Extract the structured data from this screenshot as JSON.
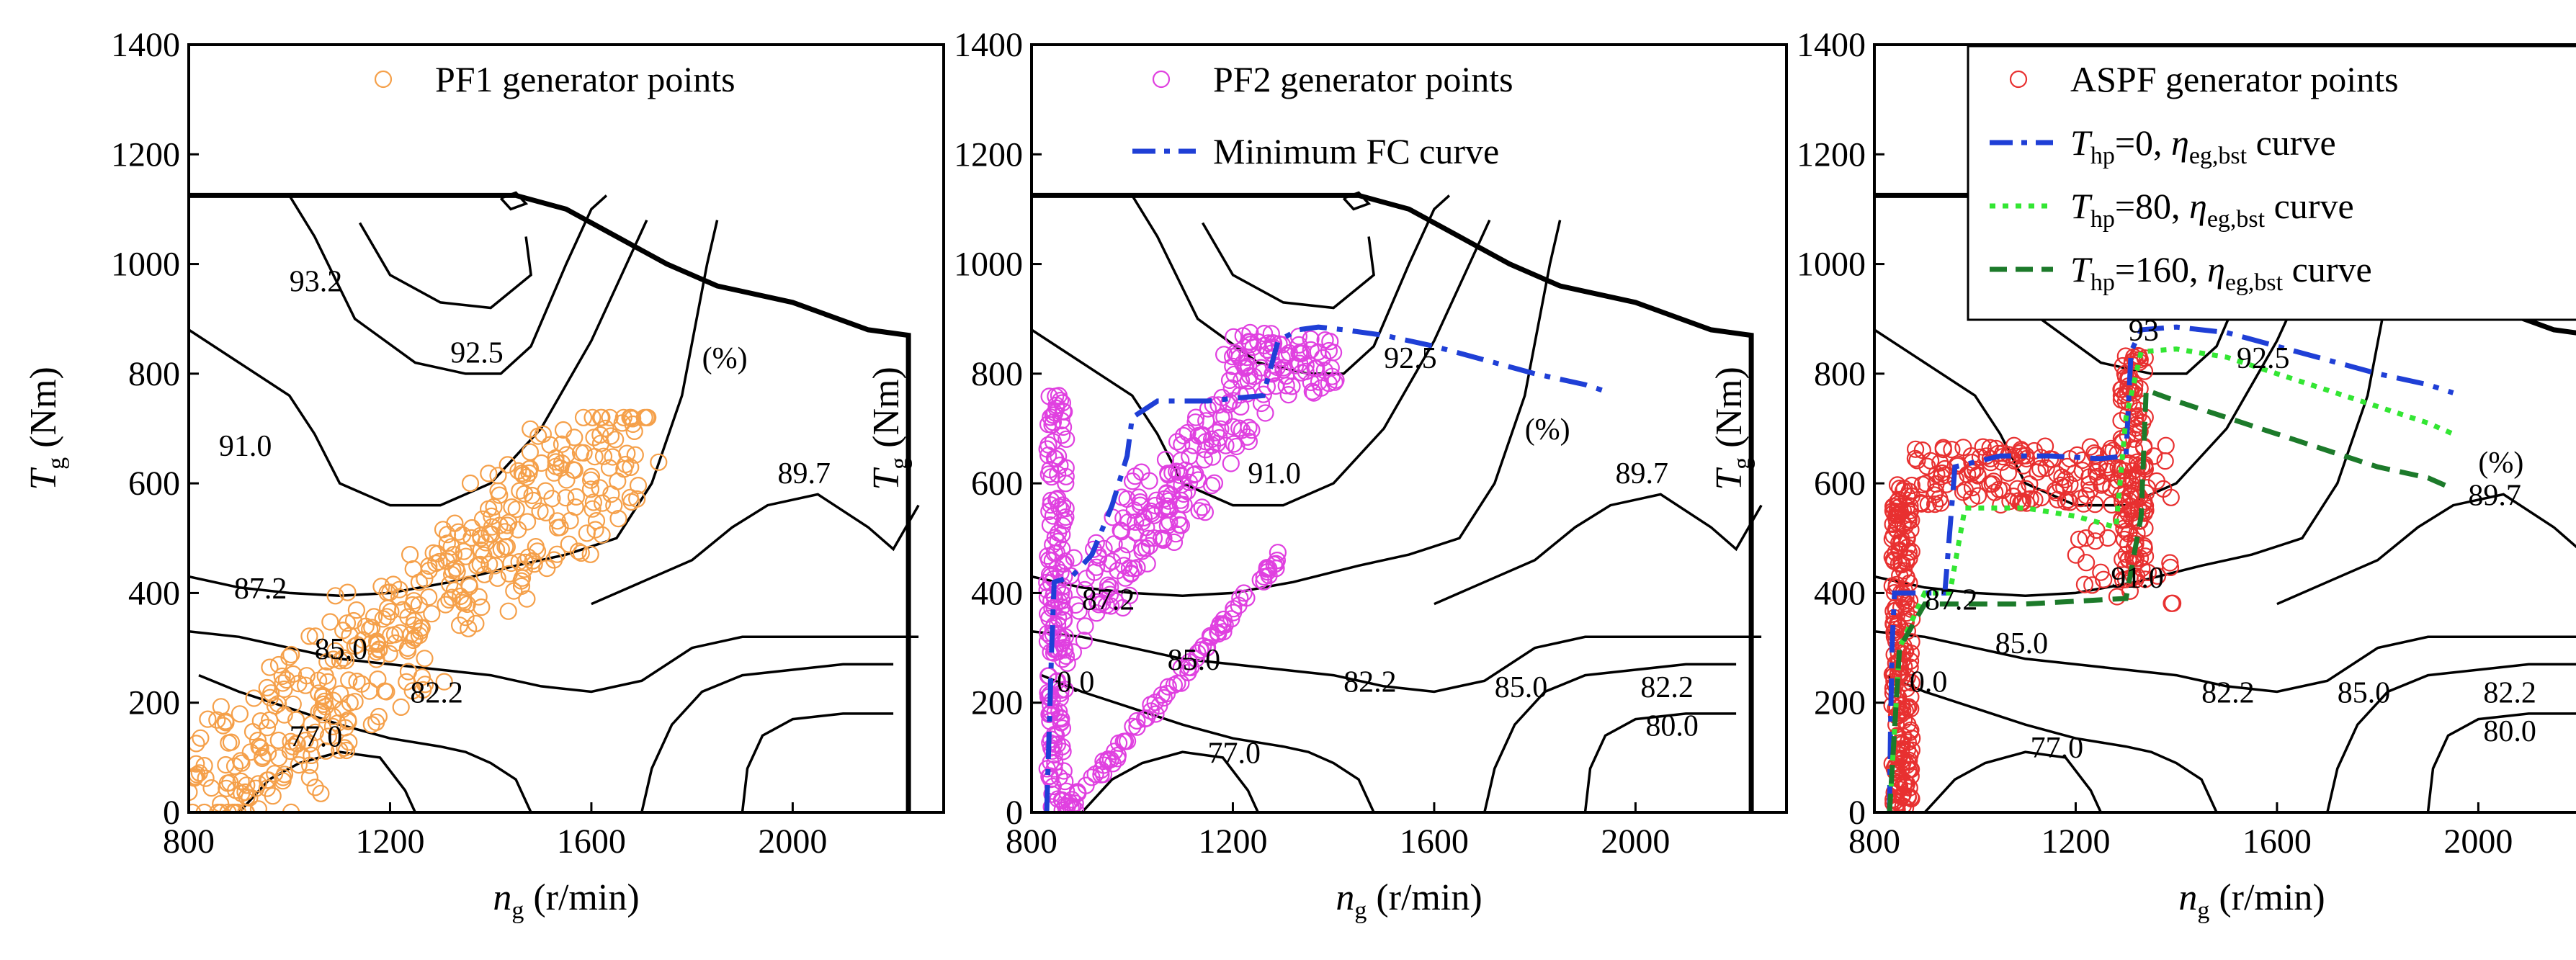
{
  "chart_data": [
    {
      "type": "scatter",
      "panel": "left",
      "xlabel": "n",
      "xlabel_sub": "g",
      "xlabel_unit": " (r/min)",
      "ylabel": "T",
      "ylabel_sub": "g",
      "ylabel_unit": " (Nm)",
      "xlim": [
        800,
        2300
      ],
      "ylim": [
        0,
        1400
      ],
      "xticks": [
        "800",
        "1200",
        "1600",
        "2000"
      ],
      "yticks": [
        "0",
        "200",
        "400",
        "600",
        "800",
        "1000",
        "1200",
        "1400"
      ],
      "unit_label": "(%)",
      "contour_labels": [
        "93.2",
        "92.5",
        "91.0",
        "89.7",
        "87.2",
        "85.0",
        "82.2",
        "77.0"
      ],
      "legend": [
        {
          "label": "PF1 generator points",
          "marker": "circle",
          "color": "#f5a04a"
        }
      ],
      "series": [
        {
          "name": "PF1 generator points",
          "color": "#f5a04a",
          "marker": "circle"
        }
      ]
    },
    {
      "type": "scatter",
      "panel": "middle",
      "xlabel": "n",
      "xlabel_sub": "g",
      "xlabel_unit": " (r/min)",
      "ylabel": "T",
      "ylabel_sub": "g",
      "ylabel_unit": " (Nm)",
      "xlim": [
        800,
        2300
      ],
      "ylim": [
        0,
        1400
      ],
      "xticks": [
        "800",
        "1200",
        "1600",
        "2000"
      ],
      "yticks": [
        "0",
        "200",
        "400",
        "600",
        "800",
        "1000",
        "1200",
        "1400"
      ],
      "unit_label": "(%)",
      "contour_labels": [
        "92.5",
        "91.0",
        "89.7",
        "87.2",
        "85.0",
        "0.0",
        "82.2",
        "85.0",
        "82.2",
        "80.0",
        "77.0"
      ],
      "legend": [
        {
          "label": "PF2 generator points",
          "marker": "circle",
          "color": "#e040e0"
        },
        {
          "label": "Minimum FC curve",
          "style": "dash-dot",
          "color": "#1f3fd6"
        }
      ],
      "series": [
        {
          "name": "PF2 generator points",
          "color": "#e040e0",
          "marker": "circle"
        },
        {
          "name": "Minimum FC curve",
          "color": "#1f3fd6",
          "line": "dash-dot",
          "x": [
            830,
            835,
            840,
            845,
            880,
            920,
            960,
            990,
            1000,
            1050,
            1100,
            1150,
            1200,
            1260,
            1290,
            1330,
            1370,
            1420,
            1500,
            1600,
            1700,
            1800,
            1900,
            1950
          ],
          "y": [
            0,
            150,
            300,
            420,
            430,
            470,
            560,
            650,
            720,
            750,
            750,
            750,
            755,
            760,
            860,
            880,
            885,
            880,
            870,
            850,
            825,
            800,
            780,
            765
          ]
        }
      ]
    },
    {
      "type": "scatter",
      "panel": "right",
      "xlabel": "n",
      "xlabel_sub": "g",
      "xlabel_unit": " (r/min)",
      "ylabel": "T",
      "ylabel_sub": "g",
      "ylabel_unit": " (Nm)",
      "xlim": [
        800,
        2300
      ],
      "ylim": [
        0,
        1400
      ],
      "xticks": [
        "800",
        "1200",
        "1600",
        "2000"
      ],
      "yticks": [
        "0",
        "200",
        "400",
        "600",
        "800",
        "1000",
        "1200",
        "1400"
      ],
      "unit_label": "(%)",
      "contour_labels": [
        "93",
        "92.5",
        "91.0",
        "89.7",
        "87.2",
        "85.0",
        "0.0",
        "82.2",
        "85.0",
        "82.2",
        "80.0",
        "77.0"
      ],
      "legend": [
        {
          "label": "ASPF generator points",
          "marker": "circle",
          "color": "#e83030"
        },
        {
          "label_T": "T",
          "label_sub": "hp",
          "label_mid": "=0, ",
          "label_eta": "η",
          "label_eta_sub": "eg,bst",
          "label_end": " curve",
          "style": "dash-dot",
          "color": "#1f3fd6"
        },
        {
          "label_T": "T",
          "label_sub": "hp",
          "label_mid": "=80, ",
          "label_eta": "η",
          "label_eta_sub": "eg,bst",
          "label_end": " curve",
          "style": "dotted",
          "color": "#33e633"
        },
        {
          "label_T": "T",
          "label_sub": "hp",
          "label_mid": "=160, ",
          "label_eta": "η",
          "label_eta_sub": "eg,bst",
          "label_end": " curve",
          "style": "dashed",
          "color": "#1c7a2a"
        }
      ],
      "series": [
        {
          "name": "ASPF generator points",
          "color": "#e83030",
          "marker": "circle"
        },
        {
          "name": "Thp=0 eta_eg,bst curve",
          "color": "#1f3fd6",
          "line": "dash-dot",
          "x": [
            830,
            832,
            835,
            840,
            900,
            940,
            960,
            1050,
            1150,
            1250,
            1300,
            1310,
            1330,
            1400,
            1500,
            1600,
            1700,
            1800,
            1900,
            1950
          ],
          "y": [
            0,
            150,
            300,
            400,
            400,
            400,
            630,
            650,
            650,
            645,
            650,
            840,
            880,
            885,
            875,
            850,
            825,
            800,
            780,
            765
          ]
        },
        {
          "name": "Thp=80 eta_eg,bst curve",
          "color": "#33e633",
          "line": "dotted",
          "x": [
            830,
            850,
            900,
            950,
            980,
            1100,
            1200,
            1280,
            1300,
            1330,
            1400,
            1500,
            1600,
            1700,
            1800,
            1900,
            1950
          ],
          "y": [
            0,
            300,
            400,
            400,
            555,
            555,
            540,
            520,
            720,
            840,
            845,
            830,
            800,
            770,
            740,
            710,
            690
          ]
        },
        {
          "name": "Thp=160 eta_eg,bst curve",
          "color": "#1c7a2a",
          "line": "dashed",
          "x": [
            830,
            850,
            900,
            1050,
            1100,
            1300,
            1330,
            1340,
            1400,
            1500,
            1600,
            1700,
            1800,
            1900,
            1950
          ],
          "y": [
            0,
            300,
            380,
            380,
            380,
            390,
            540,
            770,
            750,
            720,
            690,
            660,
            630,
            610,
            590
          ]
        }
      ]
    }
  ]
}
